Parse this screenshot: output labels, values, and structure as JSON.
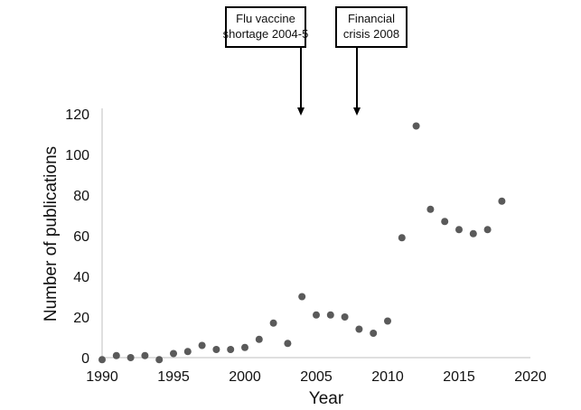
{
  "chart_data": {
    "type": "scatter",
    "xlabel": "Year",
    "ylabel": "Number of publications",
    "xlim": [
      1990,
      2020
    ],
    "ylim": [
      0,
      120
    ],
    "xticks": [
      1990,
      1995,
      2000,
      2005,
      2010,
      2015,
      2020
    ],
    "yticks": [
      0,
      20,
      40,
      60,
      80,
      100,
      120
    ],
    "grid": false,
    "marker_color": "#5a5a5a",
    "axis_color": "#bfbfbf",
    "series": [
      {
        "x": [
          1990,
          1991,
          1992,
          1993,
          1994,
          1995,
          1996,
          1997,
          1998,
          1999,
          2000,
          2001,
          2002,
          2003,
          2004,
          2005,
          2006,
          2007,
          2008,
          2009,
          2010,
          2011,
          2012,
          2013,
          2014,
          2015,
          2016,
          2017,
          2018
        ],
        "y": [
          -1,
          1,
          0,
          1,
          -1,
          2,
          3,
          6,
          4,
          4,
          5,
          9,
          17,
          7,
          30,
          21,
          21,
          20,
          14,
          12,
          18,
          59,
          114,
          73,
          67,
          63,
          61,
          63,
          77
        ]
      }
    ],
    "annotations": [
      {
        "lines": [
          "Flu vaccine",
          "shortage 2004-5"
        ],
        "x": 2004
      },
      {
        "lines": [
          "Financial",
          "crisis 2008"
        ],
        "x": 2008
      }
    ]
  }
}
